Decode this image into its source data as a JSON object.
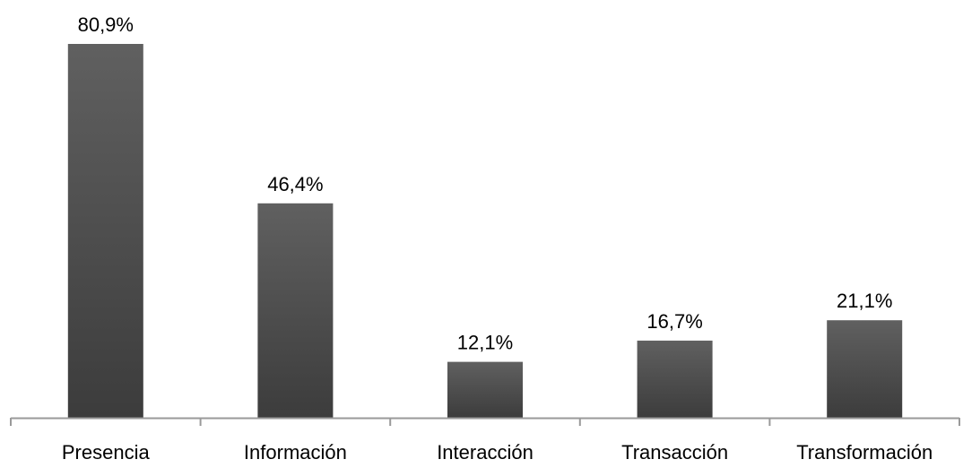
{
  "chart_data": {
    "type": "bar",
    "title": "",
    "xlabel": "",
    "ylabel": "",
    "categories": [
      "Presencia",
      "Información",
      "Interacción",
      "Transacción",
      "Transformación"
    ],
    "values": [
      80.9,
      46.4,
      12.1,
      16.7,
      21.1
    ],
    "data_labels": [
      "80,9%",
      "46,4%",
      "12,1%",
      "16,7%",
      "21,1%"
    ],
    "unit": "%",
    "ylim": [
      0,
      80.9
    ],
    "grid": false,
    "legend": "none",
    "colors": {
      "bar_top": "#606060",
      "bar_bottom": "#3c3c3c",
      "axis": "#9a9a9a",
      "text": "#000000"
    }
  }
}
